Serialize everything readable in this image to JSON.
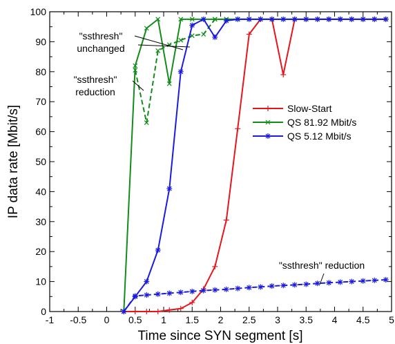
{
  "chart_data": {
    "type": "line",
    "xlabel": "Time since SYN segment [s]",
    "ylabel": "IP data rate [Mbit/s]",
    "xlim": [
      -1,
      5
    ],
    "ylim": [
      0,
      100
    ],
    "xticks": [
      -1,
      -0.5,
      0,
      0.5,
      1,
      1.5,
      2,
      2.5,
      3,
      3.5,
      4,
      4.5,
      5
    ],
    "xtick_labels": [
      "-1",
      "-0.5",
      "0",
      "0.5",
      "1",
      "1.5",
      "2",
      "2.5",
      "3",
      "3.5",
      "4",
      "4.5",
      "5"
    ],
    "yticks": [
      0,
      10,
      20,
      30,
      40,
      50,
      60,
      70,
      80,
      90,
      100
    ],
    "ytick_labels": [
      "0",
      "10",
      "20",
      "30",
      "40",
      "50",
      "60",
      "70",
      "80",
      "90",
      "100"
    ],
    "grid": false,
    "legend_position": "center-right",
    "series": [
      {
        "name": "Slow-Start",
        "color": "#e8141a",
        "marker": "plus",
        "dash": "solid",
        "points": [
          [
            0.3,
            0
          ],
          [
            0.5,
            0
          ],
          [
            0.7,
            0
          ],
          [
            0.9,
            0
          ],
          [
            1.1,
            0.5
          ],
          [
            1.3,
            1
          ],
          [
            1.5,
            3
          ],
          [
            1.7,
            7.5
          ],
          [
            1.9,
            15
          ],
          [
            2.1,
            30.5
          ],
          [
            2.3,
            61
          ],
          [
            2.5,
            92.5
          ],
          [
            2.7,
            97.5
          ],
          [
            2.9,
            97.5
          ],
          [
            3.1,
            79
          ],
          [
            3.3,
            97.5
          ],
          [
            3.5,
            97.5
          ],
          [
            3.7,
            97.5
          ],
          [
            3.9,
            97.5
          ],
          [
            4.1,
            97.5
          ],
          [
            4.3,
            97.5
          ],
          [
            4.5,
            97.5
          ],
          [
            4.7,
            97.5
          ],
          [
            4.9,
            97.5
          ]
        ]
      },
      {
        "name": "QS 81.92 Mbit/s",
        "color": "#118c18",
        "marker": "x",
        "dash": "solid",
        "points": [
          [
            0.3,
            0
          ],
          [
            0.5,
            82
          ],
          [
            0.7,
            94.5
          ],
          [
            0.9,
            97.5
          ],
          [
            1.1,
            76
          ],
          [
            1.3,
            97.5
          ],
          [
            1.5,
            97.5
          ],
          [
            1.7,
            97.5
          ],
          [
            1.9,
            97.5
          ],
          [
            2.1,
            97.5
          ],
          [
            2.3,
            97.5
          ],
          [
            2.5,
            97.5
          ],
          [
            2.7,
            97.5
          ],
          [
            2.9,
            97.5
          ],
          [
            3.1,
            97.5
          ],
          [
            3.3,
            97.5
          ],
          [
            3.5,
            97.5
          ],
          [
            3.7,
            97.5
          ],
          [
            3.9,
            97.5
          ],
          [
            4.1,
            97.5
          ],
          [
            4.3,
            97.5
          ],
          [
            4.5,
            97.5
          ],
          [
            4.7,
            97.5
          ],
          [
            4.9,
            97.5
          ]
        ]
      },
      {
        "name": "",
        "color": "#118c18",
        "marker": "x",
        "dash": "dashed",
        "points": [
          [
            0.5,
            80.5
          ],
          [
            0.7,
            63
          ],
          [
            0.9,
            87
          ],
          [
            1.1,
            89
          ],
          [
            1.3,
            90.5
          ],
          [
            1.5,
            92
          ],
          [
            1.7,
            92.5
          ],
          [
            1.9,
            97.5
          ],
          [
            2.1,
            97.5
          ],
          [
            2.3,
            97.5
          ],
          [
            2.5,
            97.5
          ]
        ]
      },
      {
        "name": "QS 5.12 Mbit/s",
        "color": "#1a1ae0",
        "marker": "star",
        "dash": "solid",
        "points": [
          [
            0.3,
            0
          ],
          [
            0.5,
            5
          ],
          [
            0.7,
            10
          ],
          [
            0.9,
            20.5
          ],
          [
            1.1,
            41
          ],
          [
            1.3,
            80
          ],
          [
            1.5,
            95.5
          ],
          [
            1.7,
            97.5
          ],
          [
            1.9,
            91.5
          ],
          [
            2.1,
            97
          ],
          [
            2.3,
            97.5
          ],
          [
            2.5,
            97.5
          ],
          [
            2.7,
            97.5
          ],
          [
            2.9,
            97.5
          ],
          [
            3.1,
            97.5
          ],
          [
            3.3,
            97.5
          ],
          [
            3.5,
            97.5
          ],
          [
            3.7,
            97.5
          ],
          [
            3.9,
            97.5
          ],
          [
            4.1,
            97.5
          ],
          [
            4.3,
            97.5
          ],
          [
            4.5,
            97.5
          ],
          [
            4.7,
            97.5
          ],
          [
            4.9,
            97.5
          ]
        ]
      },
      {
        "name": "",
        "color": "#1a1ae0",
        "marker": "star",
        "dash": "dashed",
        "points": [
          [
            0.3,
            0
          ],
          [
            0.5,
            5.2
          ],
          [
            0.7,
            5.5
          ],
          [
            0.9,
            5.8
          ],
          [
            1.1,
            6.1
          ],
          [
            1.3,
            6.4
          ],
          [
            1.5,
            6.7
          ],
          [
            1.7,
            7.0
          ],
          [
            1.9,
            7.2
          ],
          [
            2.1,
            7.4
          ],
          [
            2.3,
            7.7
          ],
          [
            2.5,
            8.0
          ],
          [
            2.7,
            8.2
          ],
          [
            2.9,
            8.5
          ],
          [
            3.1,
            8.7
          ],
          [
            3.3,
            8.9
          ],
          [
            3.5,
            9.1
          ],
          [
            3.7,
            9.4
          ],
          [
            3.9,
            9.6
          ],
          [
            4.1,
            9.8
          ],
          [
            4.3,
            10.0
          ],
          [
            4.5,
            10.2
          ],
          [
            4.7,
            10.4
          ],
          [
            4.9,
            10.6
          ]
        ]
      }
    ],
    "annotations": [
      {
        "lines": [
          "\"ssthresh\"",
          "unchanged"
        ]
      },
      {
        "lines": [
          "\"ssthresh\"",
          "reduction"
        ]
      },
      {
        "lines": [
          "\"ssthresh\" reduction"
        ]
      }
    ]
  }
}
